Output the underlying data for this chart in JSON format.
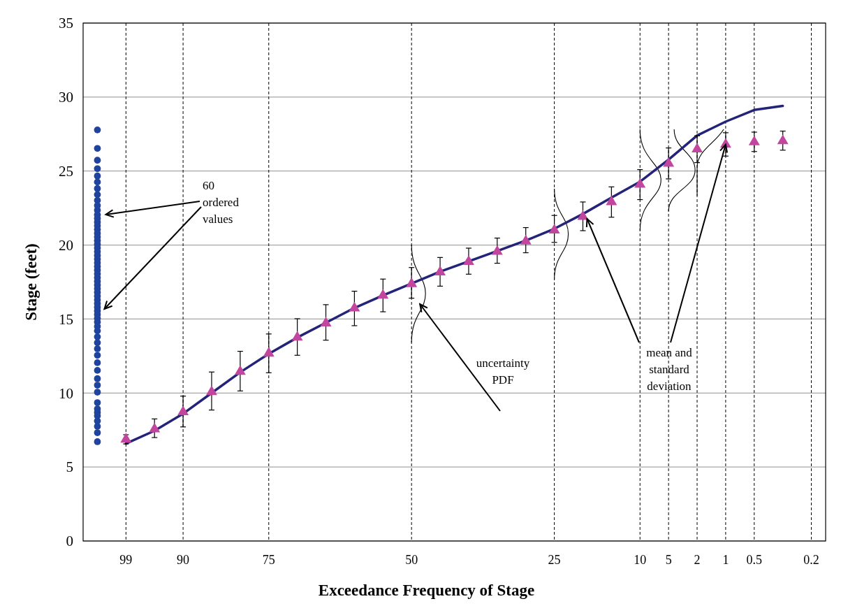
{
  "chart_data": {
    "type": "scatter",
    "xlabel": "Exceedance Frequency of Stage",
    "ylabel": "Stage (feet)",
    "categories": [
      null,
      "99",
      null,
      "90",
      null,
      null,
      "75",
      null,
      null,
      null,
      null,
      "50",
      null,
      null,
      null,
      null,
      "25",
      null,
      null,
      "10",
      "5",
      "2",
      "1",
      "0.5",
      null,
      "0.2"
    ],
    "ylim": [
      0,
      35
    ],
    "yticks": [
      0,
      5,
      10,
      15,
      20,
      25,
      30,
      35
    ],
    "grid": true,
    "annotations": [
      "60 ordered values",
      "uncertainty PDF",
      {
        "text": "mean and standard deviation",
        "x": "1",
        "y": 26.8
      }
    ],
    "series": [
      {
        "type": "scatter",
        "marker": "circle",
        "color": "#1f44a0",
        "x": [
          null,
          null,
          null,
          null,
          null,
          null,
          null,
          null,
          null,
          null,
          null,
          null,
          null,
          null,
          null,
          null,
          null,
          null,
          null,
          null,
          null,
          null,
          null,
          null,
          null,
          null,
          null,
          null,
          null,
          null,
          null,
          null,
          null,
          null,
          null,
          null,
          null,
          null,
          null,
          null,
          null,
          null,
          null,
          null,
          null,
          null,
          null,
          null,
          null,
          null,
          null,
          null,
          null,
          null,
          null,
          null,
          null,
          null,
          null,
          null
        ],
        "values": [
          27.78,
          26.53,
          25.73,
          25.16,
          24.67,
          24.26,
          23.82,
          23.41,
          23.02,
          22.67,
          22.35,
          22.05,
          21.8,
          21.55,
          21.3,
          21.05,
          20.8,
          20.55,
          20.3,
          20.05,
          19.8,
          19.55,
          19.3,
          19.05,
          18.8,
          18.55,
          18.3,
          18.05,
          17.8,
          17.55,
          17.3,
          17.05,
          16.8,
          16.55,
          16.3,
          16.05,
          15.8,
          15.55,
          15.3,
          15.05,
          14.8,
          14.5,
          14.2,
          13.8,
          13.4,
          12.99,
          12.55,
          12.05,
          11.53,
          10.97,
          10.53,
          10.06,
          9.35,
          8.93,
          8.69,
          8.46,
          8.11,
          7.75,
          7.32,
          6.71
        ]
      },
      {
        "type": "line",
        "marker": "none",
        "line_style": "solid",
        "color": "#23237a",
        "values": [
          null,
          6.58,
          7.45,
          8.6,
          10.0,
          11.4,
          12.65,
          13.75,
          14.75,
          15.75,
          16.6,
          17.4,
          18.2,
          18.9,
          19.6,
          20.3,
          21.1,
          22.1,
          23.2,
          24.28,
          25.77,
          27.4,
          28.34,
          29.13,
          29.4,
          null
        ]
      },
      {
        "marker": "triangle",
        "color": "#c2459e",
        "values": [
          null,
          6.87,
          7.56,
          8.72,
          10.08,
          11.45,
          12.68,
          13.76,
          14.72,
          15.73,
          16.59,
          17.38,
          18.17,
          18.88,
          19.56,
          20.26,
          21.0,
          21.92,
          22.91,
          24.09,
          25.51,
          26.48,
          26.8,
          26.96,
          27.03,
          null
        ],
        "errors": [
          null,
          [
            6.56,
            7.18
          ],
          [
            6.99,
            8.25
          ],
          [
            7.71,
            9.79
          ],
          [
            8.85,
            11.42
          ],
          [
            10.14,
            12.82
          ],
          [
            11.37,
            13.99
          ],
          [
            12.55,
            15.02
          ],
          [
            13.57,
            15.97
          ],
          [
            14.55,
            16.88
          ],
          [
            15.49,
            17.7
          ],
          [
            16.41,
            18.48
          ],
          [
            17.22,
            19.16
          ],
          [
            18.03,
            19.79
          ],
          [
            18.77,
            20.47
          ],
          [
            19.48,
            21.18
          ],
          [
            20.18,
            22.0
          ],
          [
            20.97,
            22.91
          ],
          [
            21.88,
            23.93
          ],
          [
            23.07,
            25.1
          ],
          [
            24.47,
            26.56
          ],
          [
            25.57,
            27.38
          ],
          [
            26.01,
            27.59
          ],
          [
            26.32,
            27.63
          ],
          [
            26.41,
            27.7
          ],
          null
        ]
      }
    ]
  }
}
